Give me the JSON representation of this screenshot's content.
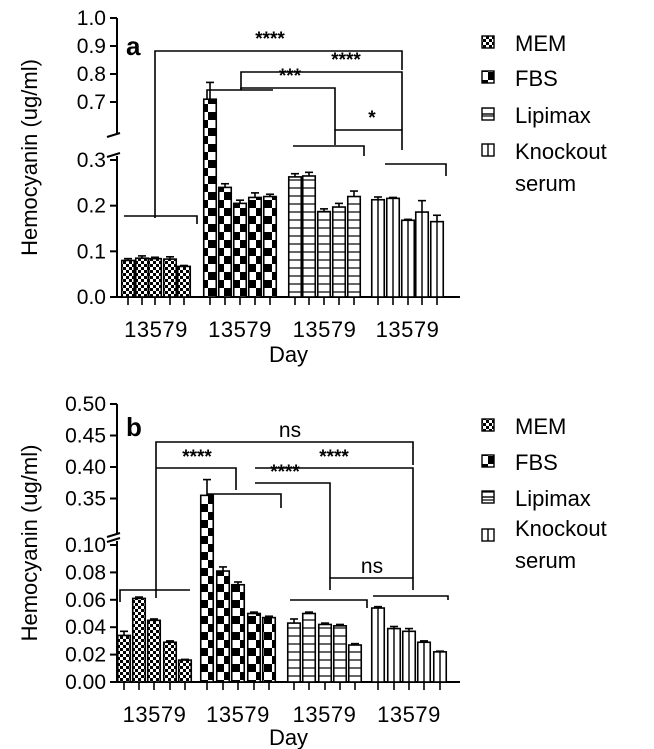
{
  "colors": {
    "ink": "#000000",
    "background": "#ffffff"
  },
  "chart_data": [
    {
      "type": "bar",
      "panel": "a",
      "ylabel": "Hemocyanin (ug/ml)",
      "xlabel": "Day",
      "ylim": [
        0,
        1.0
      ],
      "axis_break": {
        "lower": [
          0,
          0.3
        ],
        "upper": [
          0.6,
          1.0
        ]
      },
      "yticks_lower": [
        "0.0",
        "0.1",
        "0.2",
        "0.3"
      ],
      "yticks_upper": [
        "0.7",
        "0.8",
        "0.9",
        "1.0"
      ],
      "grid": false,
      "legend_position": "right",
      "groups": [
        {
          "name": "MEM",
          "pattern": "checker-small",
          "x": [
            "1",
            "3",
            "5",
            "7",
            "9"
          ],
          "x_label": "13579",
          "values": [
            0.08,
            0.085,
            0.084,
            0.083,
            0.067
          ],
          "errors": [
            0.004,
            0.005,
            0.003,
            0.005,
            0.002
          ]
        },
        {
          "name": "FBS",
          "pattern": "checker-large",
          "x": [
            "1",
            "3",
            "5",
            "7",
            "9"
          ],
          "x_label": "13579",
          "values": [
            0.71,
            0.24,
            0.205,
            0.218,
            0.22
          ],
          "errors": [
            0.06,
            0.008,
            0.007,
            0.01,
            0.005
          ]
        },
        {
          "name": "Lipimax",
          "pattern": "horizontal-lines",
          "x": [
            "1",
            "3",
            "5",
            "7",
            "9"
          ],
          "x_label": "13579",
          "values": [
            0.263,
            0.265,
            0.187,
            0.197,
            0.22
          ],
          "errors": [
            0.007,
            0.008,
            0.006,
            0.008,
            0.012
          ]
        },
        {
          "name": "Knockout serum",
          "pattern": "vertical-lines",
          "x": [
            "1",
            "3",
            "5",
            "7",
            "9"
          ],
          "x_label": "13579",
          "values": [
            0.213,
            0.216,
            0.168,
            0.186,
            0.165
          ],
          "errors": [
            0.006,
            0.002,
            0.002,
            0.025,
            0.014
          ]
        }
      ],
      "significance": [
        {
          "label": "****",
          "between": [
            "MEM",
            "Knockout serum"
          ]
        },
        {
          "label": "****",
          "between": [
            "FBS",
            "Knockout serum"
          ]
        },
        {
          "label": "***",
          "between": [
            "FBS",
            "Lipimax"
          ]
        },
        {
          "label": "*",
          "between": [
            "Lipimax",
            "Knockout serum"
          ]
        }
      ]
    },
    {
      "type": "bar",
      "panel": "b",
      "ylabel": "Hemocyanin (ug/ml)",
      "xlabel": "Day",
      "ylim": [
        0,
        0.5
      ],
      "axis_break": {
        "lower": [
          0,
          0.1
        ],
        "upper": [
          0.3,
          0.5
        ]
      },
      "yticks_lower": [
        "0.00",
        "0.02",
        "0.04",
        "0.06",
        "0.08",
        "0.10"
      ],
      "yticks_upper": [
        "0.35",
        "0.40",
        "0.45",
        "0.50"
      ],
      "grid": false,
      "legend_position": "right",
      "groups": [
        {
          "name": "MEM",
          "pattern": "checker-small",
          "x": [
            "1",
            "3",
            "5",
            "7",
            "9"
          ],
          "x_label": "13579",
          "values": [
            0.034,
            0.061,
            0.045,
            0.029,
            0.016
          ],
          "errors": [
            0.003,
            0.001,
            0.001,
            0.001,
            0.0005
          ]
        },
        {
          "name": "FBS",
          "pattern": "checker-large",
          "x": [
            "1",
            "3",
            "5",
            "7",
            "9"
          ],
          "x_label": "13579",
          "values": [
            0.355,
            0.081,
            0.071,
            0.05,
            0.047
          ],
          "errors": [
            0.025,
            0.003,
            0.002,
            0.001,
            0.001
          ]
        },
        {
          "name": "Lipimax",
          "pattern": "horizontal-lines",
          "x": [
            "1",
            "3",
            "5",
            "7",
            "9"
          ],
          "x_label": "13579",
          "values": [
            0.043,
            0.05,
            0.042,
            0.041,
            0.027
          ],
          "errors": [
            0.003,
            0.001,
            0.001,
            0.001,
            0.001
          ]
        },
        {
          "name": "Knockout serum",
          "pattern": "vertical-lines",
          "x": [
            "1",
            "3",
            "5",
            "7",
            "9"
          ],
          "x_label": "13579",
          "values": [
            0.054,
            0.039,
            0.037,
            0.029,
            0.022
          ],
          "errors": [
            0.001,
            0.0015,
            0.002,
            0.001,
            0.0005
          ]
        }
      ],
      "significance": [
        {
          "label": "ns",
          "between": [
            "MEM",
            "Knockout serum"
          ]
        },
        {
          "label": "****",
          "between": [
            "MEM",
            "FBS"
          ]
        },
        {
          "label": "****",
          "between": [
            "FBS",
            "Lipimax"
          ]
        },
        {
          "label": "****",
          "between": [
            "FBS",
            "Knockout serum"
          ]
        },
        {
          "label": "ns",
          "between": [
            "Lipimax",
            "Knockout serum"
          ]
        }
      ]
    }
  ]
}
